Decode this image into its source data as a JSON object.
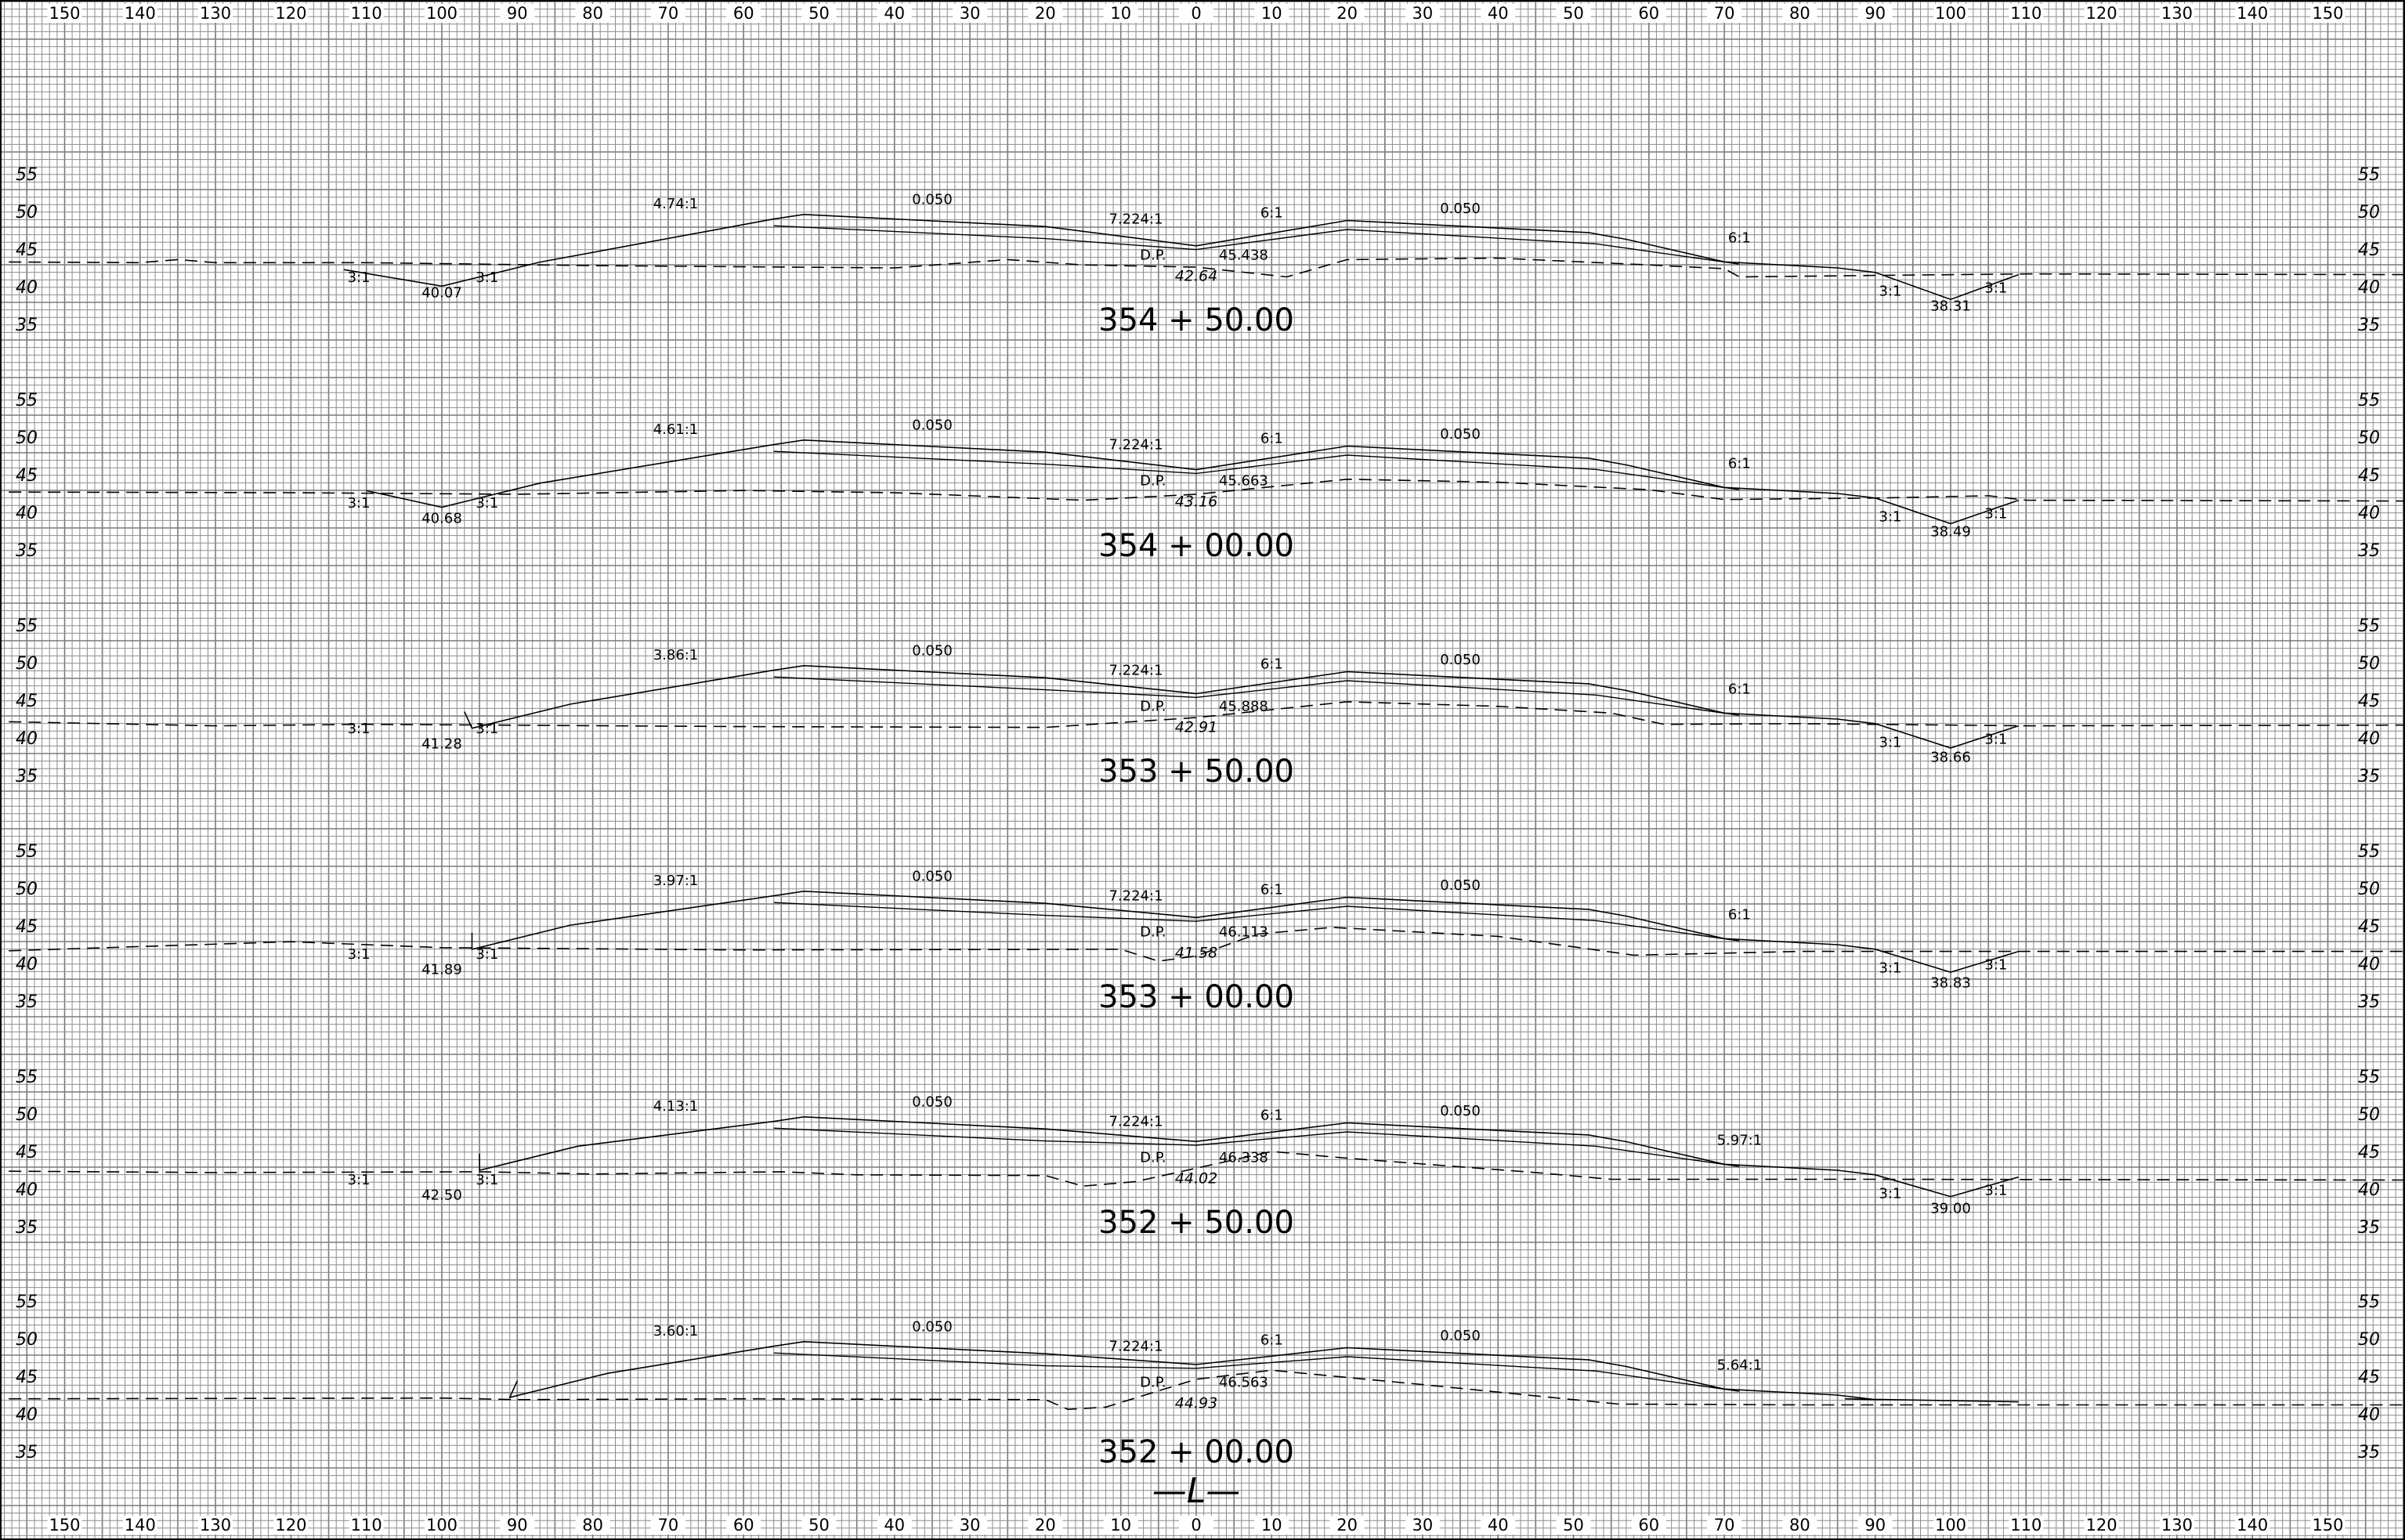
{
  "title": "",
  "centerline_label": "—L—",
  "offset_ticks": [
    150,
    140,
    130,
    120,
    110,
    100,
    90,
    80,
    70,
    60,
    50,
    40,
    30,
    20,
    10,
    0,
    10,
    20,
    30,
    40,
    50,
    60,
    70,
    80,
    90,
    100,
    110,
    120,
    130,
    140,
    150
  ],
  "elevation_ticks": [
    55,
    50,
    45,
    40,
    35
  ],
  "common_annotations": {
    "cross_slope_left": "0.050",
    "cross_slope_right": "0.050",
    "median_slope_left": "7.224:1",
    "median_slope_right": "6:1",
    "ditch_slope": "3:1",
    "design_point_label": "D.P."
  },
  "sections": [
    {
      "station": "354 + 50.00",
      "dp_value": "45.438",
      "ground_value": "42.64",
      "left_slope": "4.74:1",
      "right_slope": "6:1",
      "left_ditch": "40.07",
      "right_ditch": "38.31"
    },
    {
      "station": "354 + 00.00",
      "dp_value": "45.663",
      "ground_value": "43.16",
      "left_slope": "4.61:1",
      "right_slope": "6:1",
      "left_ditch": "40.68",
      "right_ditch": "38.49"
    },
    {
      "station": "353 + 50.00",
      "dp_value": "45.888",
      "ground_value": "42.91",
      "left_slope": "3.86:1",
      "right_slope": "6:1",
      "left_ditch": "41.28",
      "right_ditch": "38.66"
    },
    {
      "station": "353 + 00.00",
      "dp_value": "46.113",
      "ground_value": "41.58",
      "left_slope": "3.97:1",
      "right_slope": "6:1",
      "left_ditch": "41.89",
      "right_ditch": "38.83"
    },
    {
      "station": "352 + 50.00",
      "dp_value": "46.338",
      "ground_value": "44.02",
      "left_slope": "4.13:1",
      "right_slope": "5.97:1",
      "left_ditch": "42.50",
      "right_ditch": "39.00"
    },
    {
      "station": "352 + 00.00",
      "dp_value": "46.563",
      "ground_value": "44.93",
      "left_slope": "3.60:1",
      "right_slope": "5.64:1",
      "left_ditch": "",
      "right_ditch": ""
    }
  ]
}
